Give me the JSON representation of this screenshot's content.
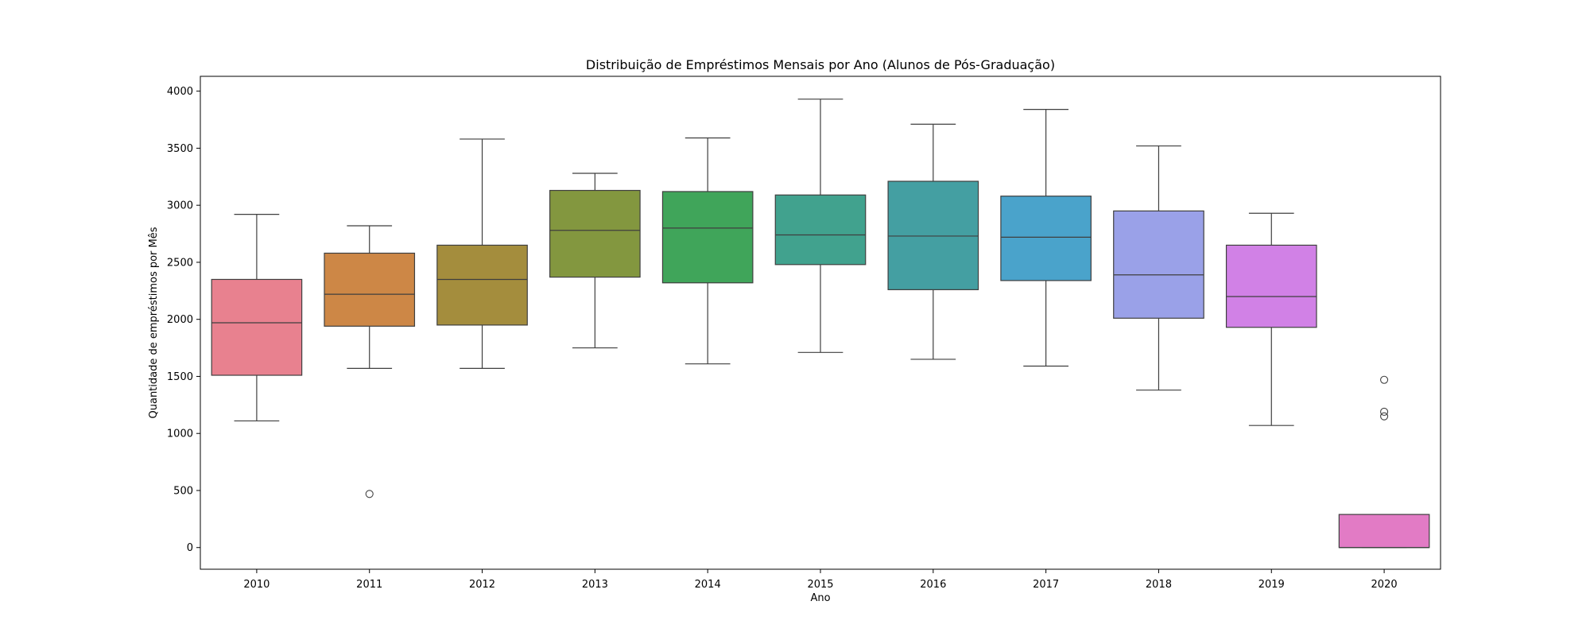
{
  "chart_data": {
    "type": "box",
    "title": "Distribuição de Empréstimos Mensais por Ano (Alunos de Pós-Graduação)",
    "xlabel": "Ano",
    "ylabel": "Quantidade de empréstimos por Mês",
    "ylim": [
      -190,
      4130
    ],
    "yticks": [
      0,
      500,
      1000,
      1500,
      2000,
      2500,
      3000,
      3500,
      4000
    ],
    "grid": false,
    "categories": [
      "2010",
      "2011",
      "2012",
      "2013",
      "2014",
      "2015",
      "2016",
      "2017",
      "2018",
      "2019",
      "2020"
    ],
    "colors": [
      "#e8818f",
      "#cd8746",
      "#a48d3d",
      "#83973f",
      "#40a55a",
      "#41a28e",
      "#449fa2",
      "#4aa3cb",
      "#9aa1e8",
      "#d181e6",
      "#e27bc5"
    ],
    "boxes": [
      {
        "whisker_low": 1110,
        "q1": 1510,
        "median": 1970,
        "q3": 2350,
        "whisker_high": 2920,
        "outliers": []
      },
      {
        "whisker_low": 1570,
        "q1": 1940,
        "median": 2220,
        "q3": 2580,
        "whisker_high": 2820,
        "outliers": [
          470
        ]
      },
      {
        "whisker_low": 1570,
        "q1": 1950,
        "median": 2350,
        "q3": 2650,
        "whisker_high": 3580,
        "outliers": []
      },
      {
        "whisker_low": 1750,
        "q1": 2370,
        "median": 2780,
        "q3": 3130,
        "whisker_high": 3280,
        "outliers": []
      },
      {
        "whisker_low": 1610,
        "q1": 2320,
        "median": 2800,
        "q3": 3120,
        "whisker_high": 3590,
        "outliers": []
      },
      {
        "whisker_low": 1710,
        "q1": 2480,
        "median": 2740,
        "q3": 3090,
        "whisker_high": 3930,
        "outliers": []
      },
      {
        "whisker_low": 1650,
        "q1": 2260,
        "median": 2730,
        "q3": 3210,
        "whisker_high": 3710,
        "outliers": []
      },
      {
        "whisker_low": 1590,
        "q1": 2340,
        "median": 2720,
        "q3": 3080,
        "whisker_high": 3840,
        "outliers": []
      },
      {
        "whisker_low": 1380,
        "q1": 2010,
        "median": 2390,
        "q3": 2950,
        "whisker_high": 3520,
        "outliers": []
      },
      {
        "whisker_low": 1070,
        "q1": 1930,
        "median": 2200,
        "q3": 2650,
        "whisker_high": 2930,
        "outliers": []
      },
      {
        "whisker_low": 0,
        "q1": 0,
        "median": 0,
        "q3": 290,
        "whisker_high": 290,
        "outliers": [
          1470,
          1190,
          1150
        ]
      }
    ]
  }
}
